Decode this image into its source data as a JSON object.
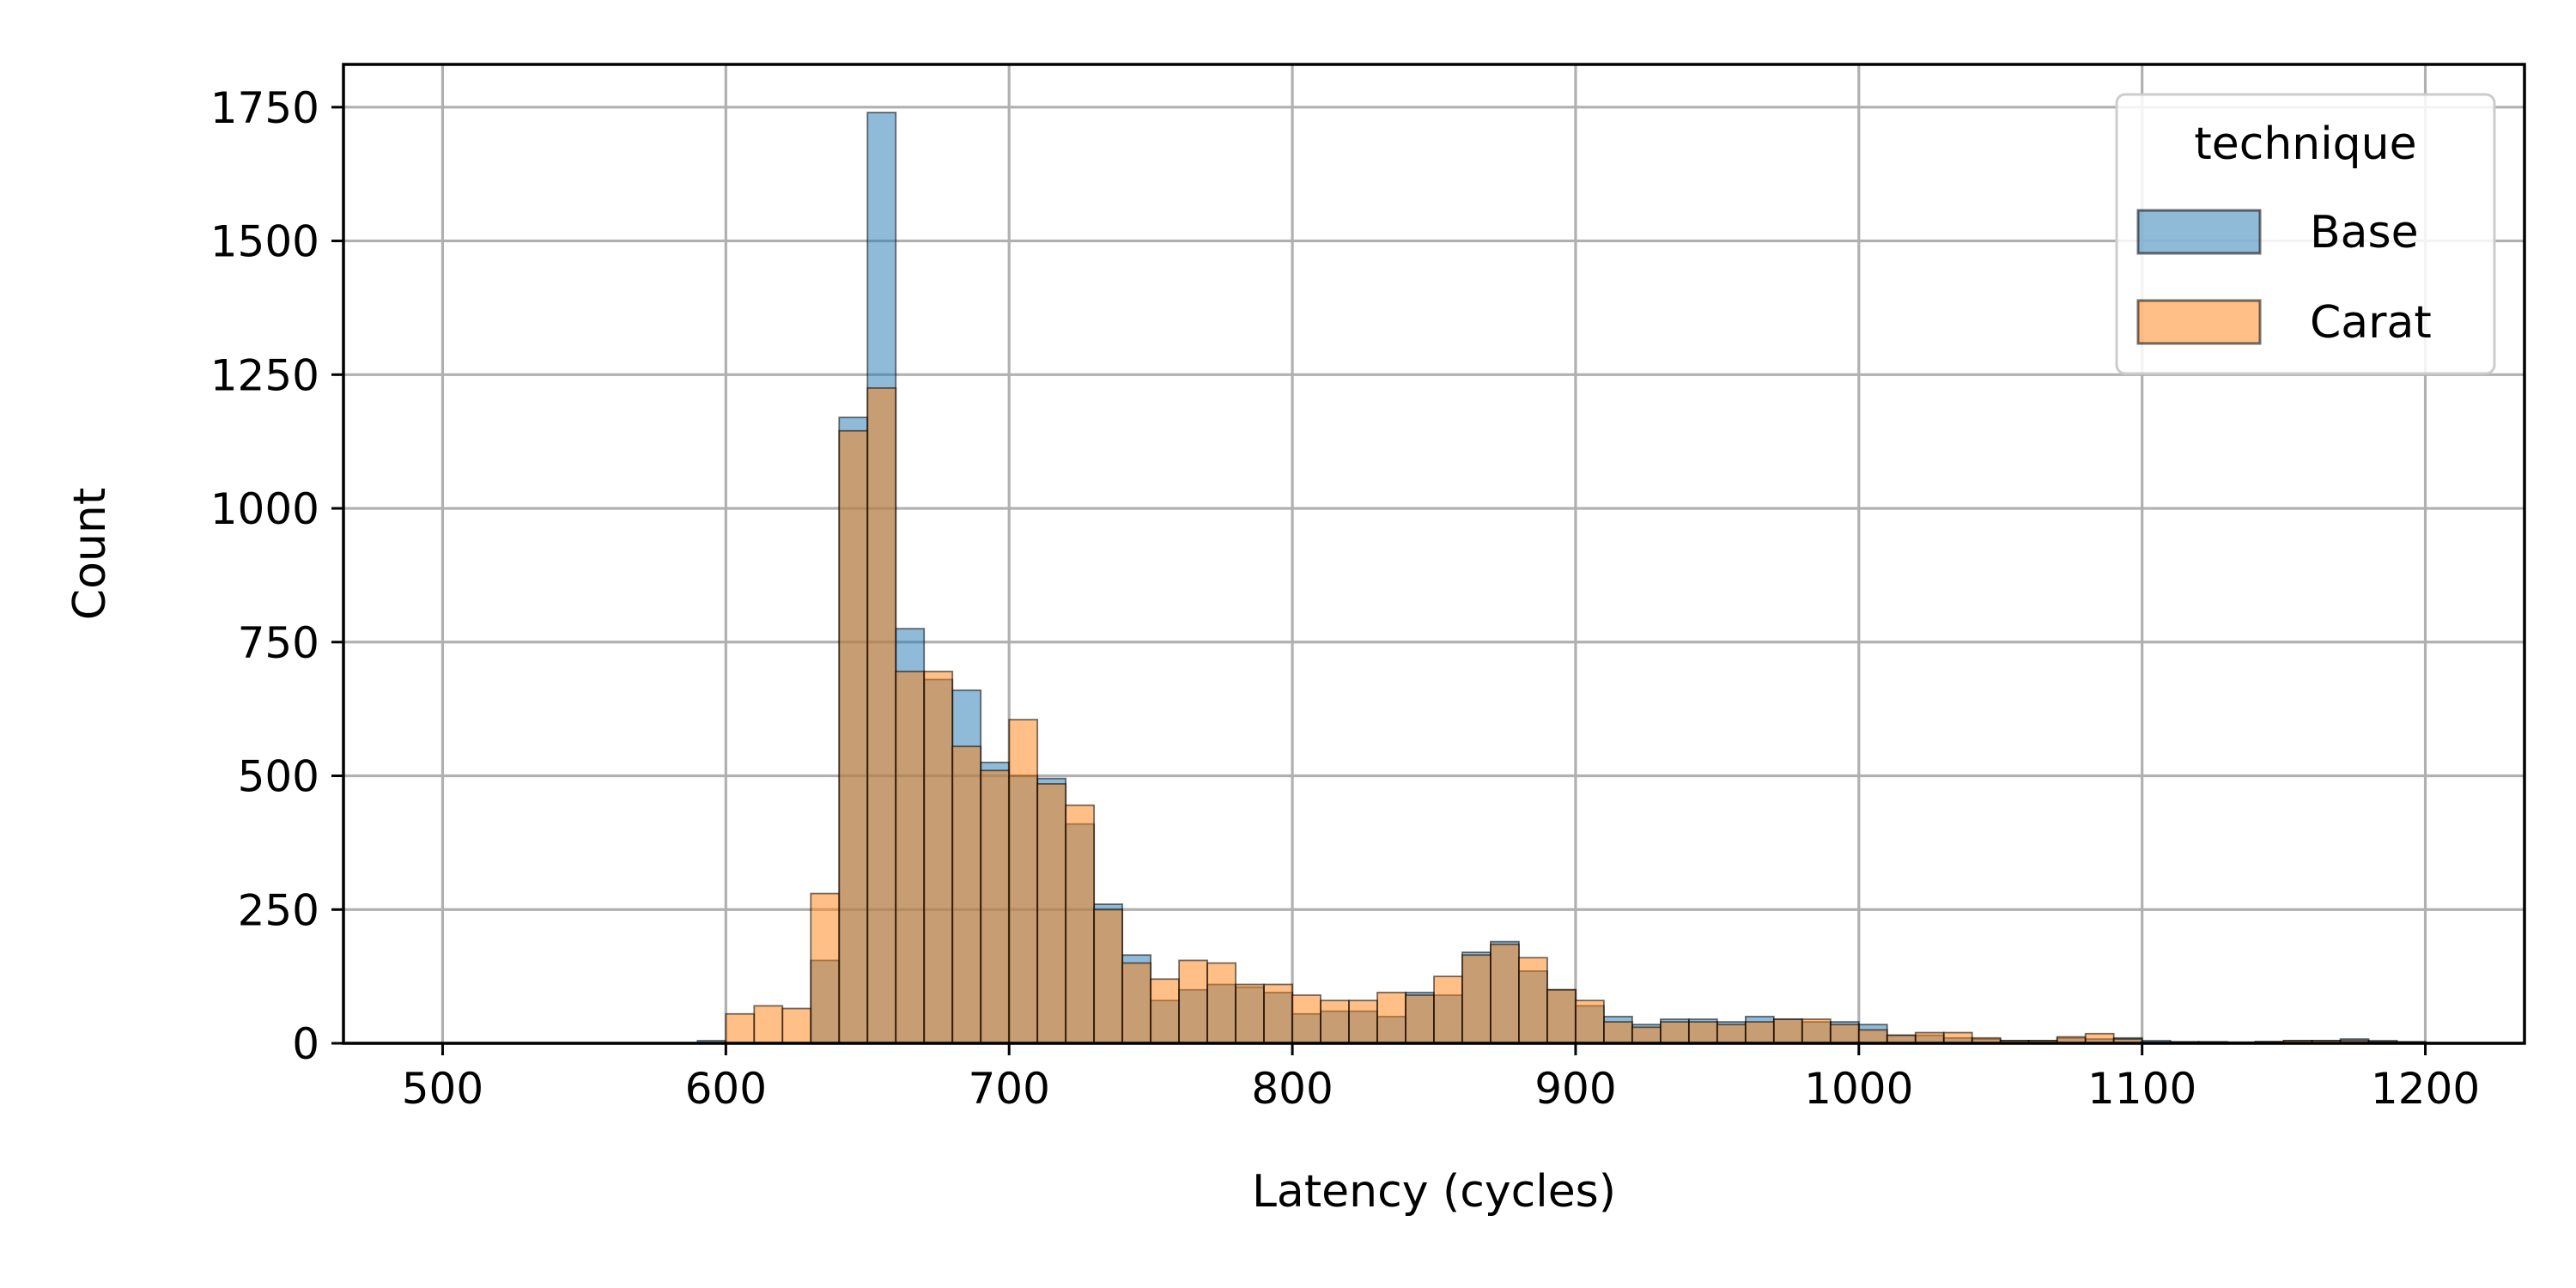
{
  "chart_data": {
    "type": "histogram",
    "xlabel": "Latency (cycles)",
    "ylabel": "Count",
    "xlim": [
      465,
      1235
    ],
    "ylim": [
      0,
      1830
    ],
    "xticks": [
      500,
      600,
      700,
      800,
      900,
      1000,
      1100,
      1200
    ],
    "yticks": [
      0,
      250,
      500,
      750,
      1000,
      1250,
      1500,
      1750
    ],
    "grid": true,
    "legend": {
      "title": "technique",
      "placement": "top-right"
    },
    "bin_edges": [
      500,
      510,
      520,
      530,
      540,
      550,
      560,
      570,
      580,
      590,
      600,
      610,
      620,
      630,
      640,
      650,
      660,
      670,
      680,
      690,
      700,
      710,
      720,
      730,
      740,
      750,
      760,
      770,
      780,
      790,
      800,
      810,
      820,
      830,
      840,
      850,
      860,
      870,
      880,
      890,
      900,
      910,
      920,
      930,
      940,
      950,
      960,
      970,
      980,
      990,
      1000,
      1010,
      1020,
      1030,
      1040,
      1050,
      1060,
      1070,
      1080,
      1090,
      1100,
      1110,
      1120,
      1130,
      1140,
      1150,
      1160,
      1170,
      1180,
      1190,
      1200
    ],
    "series": [
      {
        "name": "Base",
        "color": "#1f77b4",
        "values": [
          0,
          0,
          0,
          0,
          0,
          0,
          0,
          0,
          0,
          5,
          0,
          0,
          0,
          155,
          1170,
          1740,
          775,
          680,
          660,
          525,
          500,
          495,
          410,
          260,
          165,
          80,
          100,
          110,
          105,
          95,
          55,
          60,
          60,
          50,
          95,
          90,
          170,
          190,
          135,
          100,
          70,
          50,
          35,
          45,
          45,
          40,
          50,
          45,
          40,
          40,
          35,
          15,
          15,
          10,
          8,
          5,
          5,
          10,
          8,
          10,
          5,
          3,
          2,
          2,
          3,
          5,
          5,
          8,
          5,
          3
        ]
      },
      {
        "name": "Carat",
        "color": "#ff7f0e",
        "values": [
          0,
          0,
          0,
          0,
          0,
          0,
          0,
          0,
          0,
          0,
          55,
          70,
          65,
          280,
          1145,
          1225,
          695,
          695,
          555,
          510,
          605,
          485,
          445,
          250,
          150,
          120,
          155,
          150,
          110,
          110,
          90,
          80,
          80,
          95,
          90,
          125,
          165,
          185,
          160,
          100,
          80,
          40,
          30,
          40,
          40,
          35,
          40,
          45,
          45,
          35,
          25,
          15,
          20,
          20,
          10,
          5,
          5,
          12,
          18,
          8,
          2,
          2,
          3,
          2,
          3,
          5,
          5,
          5,
          3,
          2
        ]
      }
    ]
  }
}
